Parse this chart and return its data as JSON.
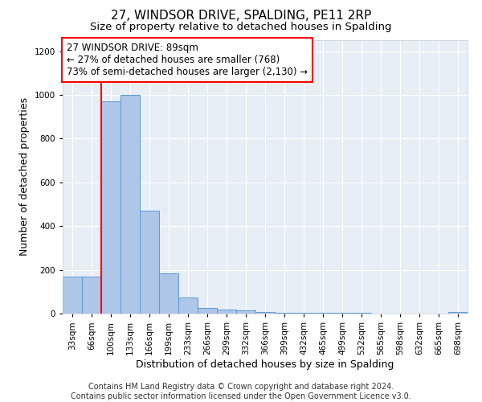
{
  "title": "27, WINDSOR DRIVE, SPALDING, PE11 2RP",
  "subtitle": "Size of property relative to detached houses in Spalding",
  "xlabel": "Distribution of detached houses by size in Spalding",
  "ylabel": "Number of detached properties",
  "categories": [
    "33sqm",
    "66sqm",
    "100sqm",
    "133sqm",
    "166sqm",
    "199sqm",
    "233sqm",
    "266sqm",
    "299sqm",
    "332sqm",
    "366sqm",
    "399sqm",
    "432sqm",
    "465sqm",
    "499sqm",
    "532sqm",
    "565sqm",
    "598sqm",
    "632sqm",
    "665sqm",
    "698sqm"
  ],
  "values": [
    170,
    170,
    970,
    1000,
    470,
    185,
    75,
    25,
    20,
    15,
    8,
    5,
    5,
    3,
    3,
    2,
    1,
    1,
    1,
    1,
    8
  ],
  "bar_color": "#aec6e8",
  "bar_edge_color": "#5b9bd5",
  "vline_color": "red",
  "vline_x_index": 2,
  "annotation_text": "27 WINDSOR DRIVE: 89sqm\n← 27% of detached houses are smaller (768)\n73% of semi-detached houses are larger (2,130) →",
  "annotation_box_color": "white",
  "annotation_box_edge_color": "red",
  "ylim": [
    0,
    1250
  ],
  "yticks": [
    0,
    200,
    400,
    600,
    800,
    1000,
    1200
  ],
  "background_color": "#e8eef5",
  "footer_text": "Contains HM Land Registry data © Crown copyright and database right 2024.\nContains public sector information licensed under the Open Government Licence v3.0.",
  "title_fontsize": 11,
  "subtitle_fontsize": 9.5,
  "xlabel_fontsize": 9,
  "ylabel_fontsize": 9,
  "tick_fontsize": 7.5,
  "annotation_fontsize": 8.5,
  "footer_fontsize": 7
}
